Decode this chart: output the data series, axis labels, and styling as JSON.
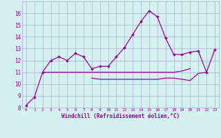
{
  "x": [
    0,
    1,
    2,
    3,
    4,
    5,
    6,
    7,
    8,
    9,
    10,
    11,
    12,
    13,
    14,
    15,
    16,
    17,
    18,
    19,
    20,
    21,
    22,
    23
  ],
  "line1": [
    8.2,
    8.9,
    11.0,
    12.0,
    12.3,
    12.0,
    12.6,
    12.3,
    11.3,
    11.5,
    11.5,
    12.3,
    13.1,
    14.2,
    15.3,
    16.2,
    15.7,
    13.9,
    12.5,
    12.5,
    12.7,
    12.8,
    11.0,
    12.9
  ],
  "line2_x": [
    2,
    3,
    4,
    5,
    6,
    7,
    8,
    9,
    10,
    11,
    12,
    13,
    14,
    15,
    16,
    17,
    18,
    19,
    20
  ],
  "line2_y": [
    11.0,
    11.0,
    11.0,
    11.0,
    11.0,
    11.0,
    11.0,
    11.0,
    11.0,
    11.0,
    11.0,
    11.0,
    11.0,
    11.0,
    11.0,
    11.0,
    11.0,
    11.1,
    11.3
  ],
  "line3_x": [
    8,
    9,
    10,
    11,
    12,
    13,
    14,
    15,
    16,
    17,
    18,
    19,
    20,
    21,
    22
  ],
  "line3_y": [
    10.5,
    10.4,
    10.4,
    10.4,
    10.4,
    10.4,
    10.4,
    10.4,
    10.4,
    10.5,
    10.5,
    10.4,
    10.3,
    10.9,
    11.0
  ],
  "line_color": "#990099",
  "bg_color": "#d4f0f0",
  "grid_color": "#aaaacc",
  "xlabel": "Windchill (Refroidissement éolien,°C)",
  "ylim": [
    8,
    17
  ],
  "xlim": [
    -0.5,
    23.5
  ],
  "yticks": [
    8,
    9,
    10,
    11,
    12,
    13,
    14,
    15,
    16
  ],
  "xticks": [
    0,
    1,
    2,
    3,
    4,
    5,
    6,
    7,
    8,
    9,
    10,
    11,
    12,
    13,
    14,
    15,
    16,
    17,
    18,
    19,
    20,
    21,
    22,
    23
  ]
}
